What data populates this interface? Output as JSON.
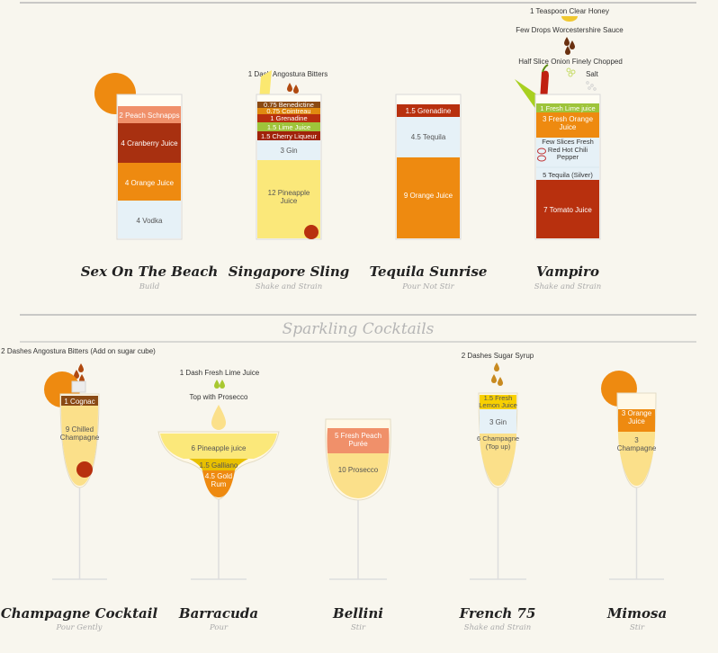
{
  "section_title": "Sparkling Cocktails",
  "colors": {
    "background": "#f8f6ee",
    "orange": "#ee8a10",
    "red": "#b8300e",
    "cranberry": "#a83010",
    "salmon": "#f0906a",
    "light_blue": "#e6f1f7",
    "yellow_light": "#fbe87a",
    "champagne": "#fbe08a",
    "gold": "#e8b800",
    "lime": "#9ec43a",
    "brown": "#8a4a14",
    "dark_red": "#a0220a"
  },
  "cocktails": [
    {
      "name": "Sex On The Beach",
      "method": "Build",
      "layers": [
        "2 Peach Schnapps",
        "4 Cranberry Juice",
        "4 Orange Juice",
        "4 Vodka"
      ]
    },
    {
      "name": "Singapore Sling",
      "method": "Shake and Strain",
      "garnish": "1 Dash Angostura Bitters",
      "layers": [
        "0.75 Benedictine",
        "0.75 Cointreau",
        "1 Grenadine",
        "1.5 Lime Juice",
        "1.5 Cherry Liqueur",
        "3 Gin",
        "12 Pineapple Juice"
      ]
    },
    {
      "name": "Tequila Sunrise",
      "method": "Pour Not Stir",
      "layers": [
        "1.5 Grenadine",
        "4.5 Tequila",
        "9 Orange Juice"
      ]
    },
    {
      "name": "Vampiro",
      "method": "Shake and Strain",
      "garnishes": [
        "1 Teaspoon Clear Honey",
        "Few Drops Worcestershire Sauce",
        "Half Slice Onion Finely Chopped",
        "Salt"
      ],
      "layers": [
        "1 Fresh Lime juice",
        "3 Fresh Orange Juice",
        "Few Slices Fresh Red Hot Chili Pepper",
        "5 Tequila (Silver)",
        "7 Tomato Juice"
      ]
    },
    {
      "name": "Champagne Cocktail",
      "method": "Pour Gently",
      "garnish": "2 Dashes Angostura Bitters (Add on sugar cube)",
      "layers": [
        "1 Cognac",
        "9 Chilled Champagne"
      ]
    },
    {
      "name": "Barracuda",
      "method": "Pour",
      "garnishes": [
        "1 Dash Fresh Lime Juice",
        "Top with Prosecco"
      ],
      "layers": [
        "6 Pineapple juice",
        "1.5 Galliano",
        "4.5 Gold Rum"
      ]
    },
    {
      "name": "Bellini",
      "method": "Stir",
      "layers": [
        "5 Fresh Peach Purée",
        "10 Prosecco"
      ]
    },
    {
      "name": "French 75",
      "method": "Shake and Strain",
      "garnish": "2 Dashes Sugar Syrup",
      "layers": [
        "1.5 Fresh Lemon Juice",
        "3 Gin",
        "6 Champagne (Top up)"
      ]
    },
    {
      "name": "Mimosa",
      "method": "Stir",
      "layers": [
        "3 Orange Juice",
        "3 Champagne"
      ]
    }
  ]
}
